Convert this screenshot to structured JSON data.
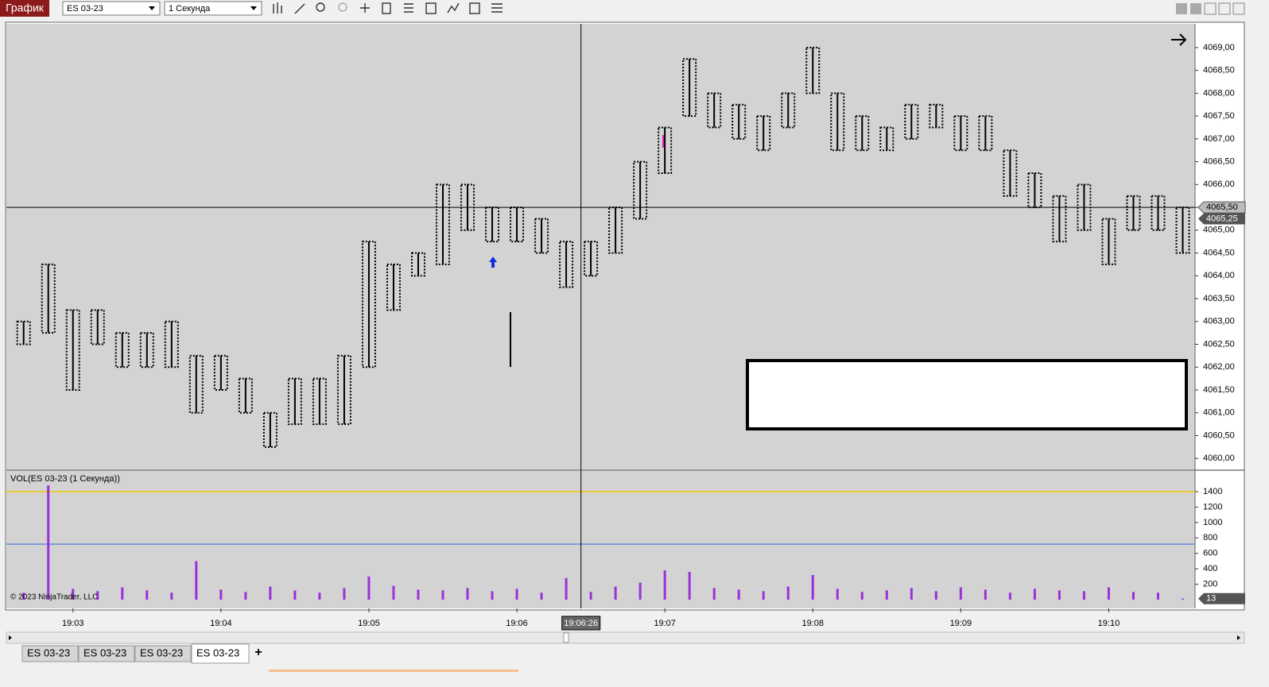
{
  "toolbar": {
    "title": "График",
    "instrument": "ES 03-23",
    "interval": "1 Секунда"
  },
  "chart_data": [
    {
      "type": "range_bar",
      "color": "#000000",
      "x": [
        "19:02:40",
        "19:02:50",
        "19:03:00",
        "19:03:10",
        "19:03:20",
        "19:03:30",
        "19:03:40",
        "19:03:50",
        "19:04:00",
        "19:04:10",
        "19:04:20",
        "19:04:30",
        "19:04:40",
        "19:04:50",
        "19:05:00",
        "19:05:10",
        "19:05:20",
        "19:05:30",
        "19:05:40",
        "19:05:50",
        "19:06:00",
        "19:06:10",
        "19:06:20",
        "19:06:30",
        "19:06:40",
        "19:06:50",
        "19:07:00",
        "19:07:10",
        "19:07:20",
        "19:07:30",
        "19:07:40",
        "19:07:50",
        "19:08:00",
        "19:08:10",
        "19:08:20",
        "19:08:30",
        "19:08:40",
        "19:08:50",
        "19:09:00",
        "19:09:10",
        "19:09:20",
        "19:09:30",
        "19:09:40",
        "19:09:50",
        "19:10:00",
        "19:10:10",
        "19:10:20",
        "19:10:30"
      ],
      "high": [
        4063.0,
        4064.25,
        4063.25,
        4063.25,
        4062.75,
        4062.75,
        4063.0,
        4062.25,
        4062.25,
        4061.75,
        4061.0,
        4061.75,
        4061.75,
        4062.25,
        4064.75,
        4064.25,
        4064.5,
        4066.0,
        4066.0,
        4065.5,
        4065.5,
        4065.25,
        4064.75,
        4064.75,
        4065.5,
        4066.5,
        4067.25,
        4068.75,
        4068.0,
        4067.75,
        4067.5,
        4068.0,
        4069.0,
        4068.0,
        4067.5,
        4067.25,
        4067.75,
        4067.75,
        4067.5,
        4067.5,
        4066.75,
        4066.25,
        4065.75,
        4066.0,
        4065.25,
        4065.75,
        4065.75,
        4065.5
      ],
      "low": [
        4062.5,
        4062.75,
        4061.5,
        4062.5,
        4062.0,
        4062.0,
        4062.0,
        4061.0,
        4061.5,
        4061.0,
        4060.25,
        4060.75,
        4060.75,
        4060.75,
        4062.0,
        4063.25,
        4064.0,
        4064.25,
        4065.0,
        4064.75,
        4064.75,
        4064.5,
        4063.75,
        4064.0,
        4064.5,
        4065.25,
        4066.25,
        4067.5,
        4067.25,
        4067.0,
        4066.75,
        4067.25,
        4068.0,
        4066.75,
        4066.75,
        4066.75,
        4067.0,
        4067.25,
        4066.75,
        4066.75,
        4065.75,
        4065.5,
        4064.75,
        4065.0,
        4064.25,
        4065.0,
        4065.0,
        4064.5
      ],
      "xlim": [
        "19:02:33",
        "19:10:35"
      ],
      "xticks": [
        "19:03",
        "19:04",
        "19:05",
        "19:06",
        "19:07",
        "19:08",
        "19:09",
        "19:10"
      ],
      "ylim": [
        4059.76,
        4069.52
      ],
      "yticks": [
        {
          "value": 4060,
          "label": "4060,00"
        },
        {
          "value": 4060.5,
          "label": "4060,50"
        },
        {
          "value": 4061,
          "label": "4061,00"
        },
        {
          "value": 4061.5,
          "label": "4061,50"
        },
        {
          "value": 4062,
          "label": "4062,00"
        },
        {
          "value": 4062.5,
          "label": "4062,50"
        },
        {
          "value": 4063,
          "label": "4063,00"
        },
        {
          "value": 4063.5,
          "label": "4063,50"
        },
        {
          "value": 4064,
          "label": "4064,00"
        },
        {
          "value": 4064.5,
          "label": "4064,50"
        },
        {
          "value": 4065,
          "label": "4065,00"
        },
        {
          "value": 4065.5,
          "label": "4065,50"
        },
        {
          "value": 4066,
          "label": "4066,00"
        },
        {
          "value": 4066.5,
          "label": "4066,50"
        },
        {
          "value": 4067,
          "label": "4067,00"
        },
        {
          "value": 4067.5,
          "label": "4067,50"
        },
        {
          "value": 4068,
          "label": "4068,00"
        },
        {
          "value": 4068.5,
          "label": "4068,50"
        },
        {
          "value": 4069,
          "label": "4069,00"
        }
      ],
      "crosshair_x": "19:06:26",
      "crosshair_price": {
        "value": 4065.5,
        "label": "4065,50"
      },
      "last_price": {
        "value": 4065.25,
        "label": "4065,25"
      },
      "copyright": "© 2023 NinjaTrader, LLC"
    },
    {
      "type": "bar",
      "title": "VOL(ES 03-23 (1 Секунда))",
      "color": "#9b30d9",
      "values": [
        90,
        1480,
        140,
        110,
        160,
        120,
        90,
        500,
        130,
        100,
        170,
        120,
        90,
        150,
        300,
        180,
        130,
        120,
        150,
        110,
        140,
        90,
        280,
        100,
        170,
        220,
        380,
        360,
        150,
        130,
        110,
        170,
        320,
        140,
        100,
        120,
        150,
        110,
        160,
        130,
        90,
        140,
        120,
        110,
        160,
        100,
        90,
        13
      ],
      "ylim": [
        -113,
        1668
      ],
      "yticks": [
        200,
        400,
        600,
        800,
        1000,
        1200,
        1400
      ],
      "reference_lines": [
        {
          "value": 1400,
          "color": "#f5c400"
        },
        {
          "value": 720,
          "color": "#6a8cdc"
        }
      ],
      "last_value": 13
    }
  ],
  "tabs": [
    "ES 03-23",
    "ES 03-23",
    "ES 03-23",
    "ES 03-23"
  ],
  "tabs_add": "+"
}
